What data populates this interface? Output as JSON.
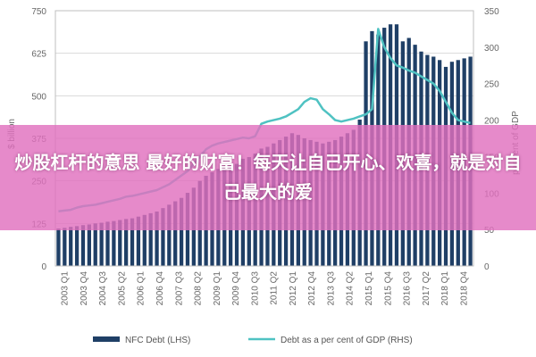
{
  "chart_data": {
    "type": "bar",
    "lhs_axis": {
      "ylim": [
        0,
        750
      ],
      "ticks": [
        "0",
        "125",
        "250",
        "375",
        "500",
        "625",
        "750"
      ],
      "label": "$ billion"
    },
    "rhs_axis": {
      "ylim": [
        0,
        350
      ],
      "ticks": [
        "0",
        "50",
        "100",
        "150",
        "200",
        "250",
        "300",
        "350"
      ],
      "label": "per cent of GDP"
    },
    "x_labels": [
      "2003 Q1",
      "2003 Q4",
      "2004 Q3",
      "2005 Q2",
      "2006 Q1",
      "2006 Q4",
      "2007 Q3",
      "2008 Q2",
      "2009 Q1",
      "2009 Q4",
      "2010 Q3",
      "2011 Q2",
      "2012 Q1",
      "2012 Q4",
      "2013 Q3",
      "2014 Q2",
      "2015 Q1",
      "2015 Q4",
      "2016 Q3",
      "2017 Q2",
      "2018 Q1",
      "2018 Q4"
    ],
    "series": [
      {
        "name": "NFC Debt (LHS)",
        "kind": "bar",
        "color": "#1f3f66",
        "values": [
          110,
          112,
          115,
          117,
          120,
          122,
          125,
          127,
          130,
          132,
          135,
          138,
          140,
          145,
          150,
          155,
          160,
          170,
          180,
          190,
          200,
          215,
          230,
          250,
          265,
          275,
          285,
          290,
          295,
          300,
          315,
          320,
          330,
          345,
          350,
          360,
          370,
          380,
          390,
          385,
          375,
          370,
          365,
          360,
          365,
          370,
          380,
          390,
          400,
          430,
          660,
          690,
          680,
          700,
          710,
          710,
          660,
          670,
          650,
          630,
          620,
          615,
          605,
          585,
          600,
          605,
          610,
          615
        ]
      },
      {
        "name": "Debt as a per cent of GDP (RHS)",
        "kind": "line",
        "color": "#4fc2c2",
        "values": [
          75,
          76,
          77,
          80,
          82,
          83,
          84,
          86,
          88,
          90,
          92,
          95,
          96,
          98,
          100,
          102,
          104,
          108,
          112,
          118,
          124,
          130,
          140,
          150,
          160,
          165,
          168,
          170,
          172,
          174,
          176,
          175,
          178,
          195,
          198,
          200,
          202,
          205,
          210,
          215,
          225,
          230,
          228,
          215,
          208,
          200,
          198,
          200,
          202,
          205,
          208,
          215,
          325,
          300,
          285,
          275,
          272,
          268,
          265,
          260,
          255,
          250,
          240,
          225,
          210,
          200,
          198,
          196
        ]
      }
    ]
  },
  "overlay": {
    "text": "炒股杠杆的意思 最好的财富！每天让自己开心、欢喜，就是对自己最大的爱"
  }
}
